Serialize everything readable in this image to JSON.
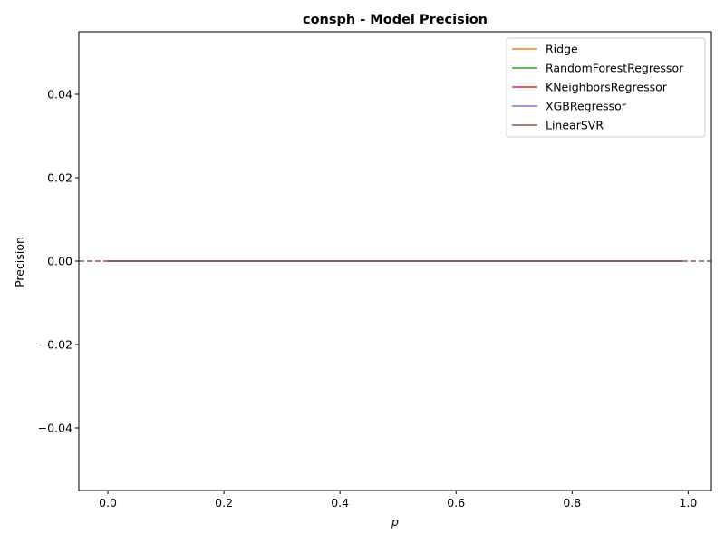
{
  "chart_data": {
    "type": "line",
    "title": "consph - Model Precision",
    "xlabel": "p",
    "ylabel": "Precision",
    "xlim": [
      -0.05,
      1.04
    ],
    "ylim": [
      -0.055,
      0.055
    ],
    "xticks": [
      0.0,
      0.2,
      0.4,
      0.6,
      0.8,
      1.0
    ],
    "xtick_labels": [
      "0.0",
      "0.2",
      "0.4",
      "0.6",
      "0.8",
      "1.0"
    ],
    "yticks": [
      -0.04,
      -0.02,
      0.0,
      0.02,
      0.04
    ],
    "ytick_labels": [
      "−0.04",
      "−0.02",
      "0.00",
      "0.02",
      "0.04"
    ],
    "grid": false,
    "legend_position": "top-right",
    "x": [
      0.0,
      0.05,
      0.1,
      0.15,
      0.2,
      0.25,
      0.3,
      0.35,
      0.4,
      0.45,
      0.5,
      0.55,
      0.6,
      0.65,
      0.7,
      0.75,
      0.8,
      0.85,
      0.9,
      0.95,
      0.99
    ],
    "series": [
      {
        "name": "Ridge",
        "color": "#ff7f0e",
        "values": [
          0,
          0,
          0,
          0,
          0,
          0,
          0,
          0,
          0,
          0,
          0,
          0,
          0,
          0,
          0,
          0,
          0,
          0,
          0,
          0,
          0
        ]
      },
      {
        "name": "RandomForestRegressor",
        "color": "#2ca02c",
        "values": [
          0,
          0,
          0,
          0,
          0,
          0,
          0,
          0,
          0,
          0,
          0,
          0,
          0,
          0,
          0,
          0,
          0,
          0,
          0,
          0,
          0
        ]
      },
      {
        "name": "KNeighborsRegressor",
        "color": "#d62728",
        "values": [
          0,
          0,
          0,
          0,
          0,
          0,
          0,
          0,
          0,
          0,
          0,
          0,
          0,
          0,
          0,
          0,
          0,
          0,
          0,
          0,
          0
        ]
      },
      {
        "name": "XGBRegressor",
        "color": "#9467bd",
        "values": [
          0,
          0,
          0,
          0,
          0,
          0,
          0,
          0,
          0,
          0,
          0,
          0,
          0,
          0,
          0,
          0,
          0,
          0,
          0,
          0,
          0
        ]
      },
      {
        "name": "LinearSVR",
        "color": "#8c564b",
        "values": [
          0,
          0,
          0,
          0,
          0,
          0,
          0,
          0,
          0,
          0,
          0,
          0,
          0,
          0,
          0,
          0,
          0,
          0,
          0,
          0,
          0
        ]
      }
    ],
    "reference_lines": [
      {
        "y": 0.0,
        "style": "dashed",
        "color": "#8c564b"
      }
    ]
  }
}
